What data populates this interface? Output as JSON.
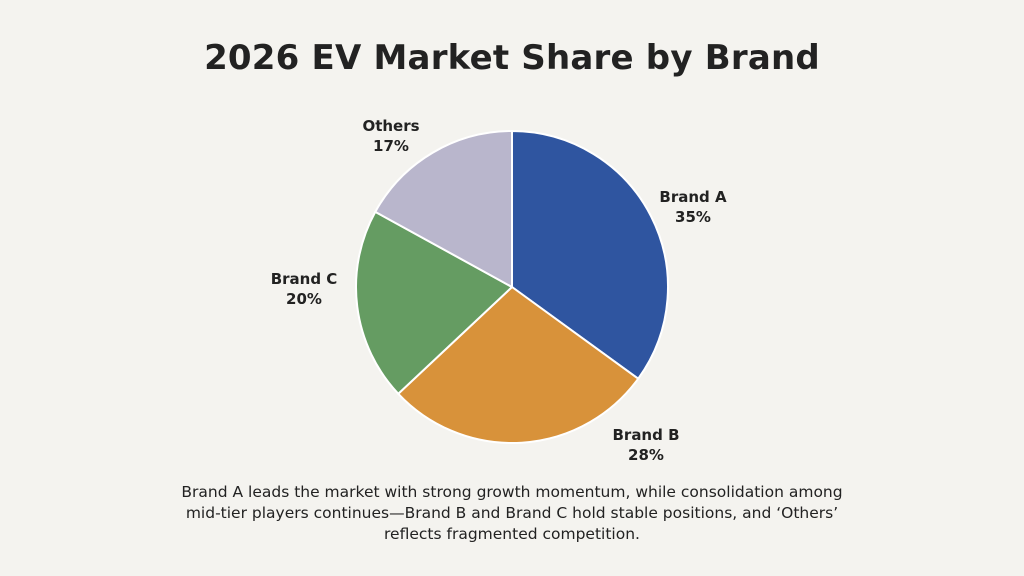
{
  "chart_data": {
    "type": "pie",
    "title": "2026 EV Market Share by Brand",
    "slices": [
      {
        "label": "Brand A",
        "value": 35,
        "display": "35%",
        "color": "#2f55a0"
      },
      {
        "label": "Brand B",
        "value": 28,
        "display": "28%",
        "color": "#d8923a"
      },
      {
        "label": "Brand C",
        "value": 20,
        "display": "20%",
        "color": "#659c62"
      },
      {
        "label": "Others",
        "value": 17,
        "display": "17%",
        "color": "#b9b6cc"
      }
    ],
    "start_angle": "12 o'clock",
    "direction": "clockwise"
  },
  "caption": "Brand A leads the market with strong growth momentum, while consolidation among mid-tier players continues—Brand B and Brand C hold stable positions, and ‘Others’ reflects fragmented competition."
}
